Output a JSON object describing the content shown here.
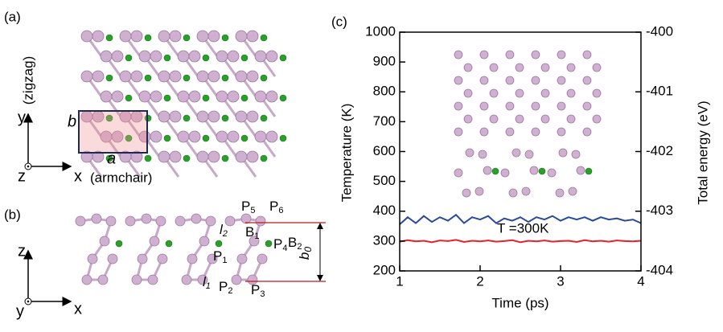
{
  "panel_labels": [
    "(a)",
    "(b)",
    "(c)"
  ],
  "panel_a": {
    "y_axis": "y",
    "y_note": "(zigzag)",
    "x_axis": "x",
    "x_note": "(armchair)",
    "z_axis": "z",
    "cell_b": "b",
    "cell_a": "a"
  },
  "panel_b": {
    "z_axis": "z",
    "y_axis": "y",
    "x_axis": "x",
    "b0": {
      "base": "b",
      "sub": "0"
    },
    "labels": [
      {
        "base": "P",
        "sub": "1"
      },
      {
        "base": "P",
        "sub": "2"
      },
      {
        "base": "P",
        "sub": "3"
      },
      {
        "base": "P",
        "sub": "4"
      },
      {
        "base": "P",
        "sub": "5"
      },
      {
        "base": "P",
        "sub": "6"
      },
      {
        "base": "l",
        "sub": "1"
      },
      {
        "base": "l",
        "sub": "2"
      },
      {
        "base": "B",
        "sub": "1"
      },
      {
        "base": "B",
        "sub": "2"
      }
    ]
  },
  "chart_data": {
    "type": "line",
    "xlabel": "Time (ps)",
    "ylabel": "Temperature (K)",
    "y2label": "Total energy (eV)",
    "annotation": "T =300K",
    "x": [
      1,
      1.1,
      1.2,
      1.3,
      1.4,
      1.5,
      1.6,
      1.7,
      1.8,
      1.9,
      2,
      2.1,
      2.2,
      2.3,
      2.4,
      2.5,
      2.6,
      2.7,
      2.8,
      2.9,
      3,
      3.1,
      3.2,
      3.3,
      3.4,
      3.5,
      3.6,
      3.7,
      3.8,
      3.9,
      4
    ],
    "xlim": [
      1,
      4
    ],
    "xticks": [
      1,
      2,
      3,
      4
    ],
    "ylim": [
      200,
      1000
    ],
    "yticks": [
      200,
      300,
      400,
      500,
      600,
      700,
      800,
      900,
      1000
    ],
    "y2lim": [
      -404,
      -400
    ],
    "y2ticks": [
      -404,
      -403,
      -402,
      -401,
      -400
    ],
    "series": [
      {
        "name": "Temperature",
        "color": "#e8202a",
        "values": [
          298,
          303,
          299,
          301,
          296,
          302,
          300,
          304,
          297,
          301,
          299,
          302,
          298,
          300,
          303,
          296,
          301,
          299,
          302,
          298,
          300,
          301,
          297,
          303,
          299,
          301,
          298,
          302,
          300,
          299,
          301
        ]
      },
      {
        "name": "Total energy",
        "color": "#2a4a9a",
        "axis": "y2",
        "values": [
          -403.22,
          -403.1,
          -403.2,
          -403.08,
          -403.18,
          -403.1,
          -403.16,
          -403.06,
          -403.2,
          -403.1,
          -403.14,
          -403.08,
          -403.2,
          -403.12,
          -403.16,
          -403.1,
          -403.18,
          -403.1,
          -403.14,
          -403.08,
          -403.16,
          -403.1,
          -403.14,
          -403.1,
          -403.16,
          -403.1,
          -403.14,
          -403.12,
          -403.16,
          -403.14,
          -403.2
        ]
      }
    ]
  }
}
